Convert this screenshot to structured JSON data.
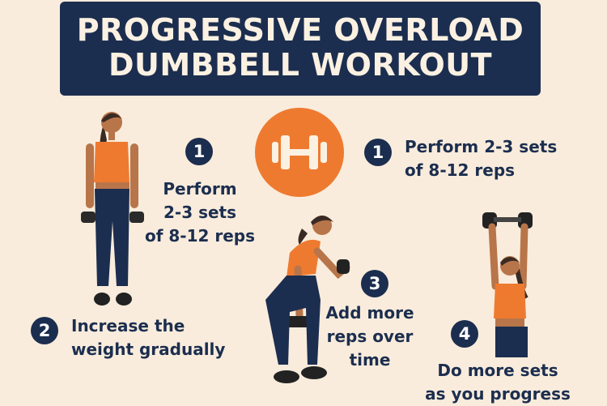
{
  "title": {
    "line1": "PROGRESSIVE OVERLOAD",
    "line2": "DUMBBELL WORKOUT"
  },
  "colors": {
    "background": "#f9ecdc",
    "navy": "#1c2e4f",
    "orange": "#ee7a30",
    "cream": "#fbf1e2"
  },
  "center_icon": "dumbbell-icon",
  "steps": [
    {
      "number": "1",
      "lines": [
        "Perform",
        "2-3 sets",
        "of 8-12 reps"
      ]
    },
    {
      "number": "1",
      "lines": [
        "Perform 2-3 sets",
        "of 8-12 reps"
      ]
    },
    {
      "number": "2",
      "lines": [
        "Increase the",
        "weight gradually"
      ]
    },
    {
      "number": "3",
      "lines": [
        "Add more",
        "reps over",
        "time"
      ]
    },
    {
      "number": "4",
      "lines": [
        "Do more sets",
        "as you progress"
      ]
    }
  ]
}
